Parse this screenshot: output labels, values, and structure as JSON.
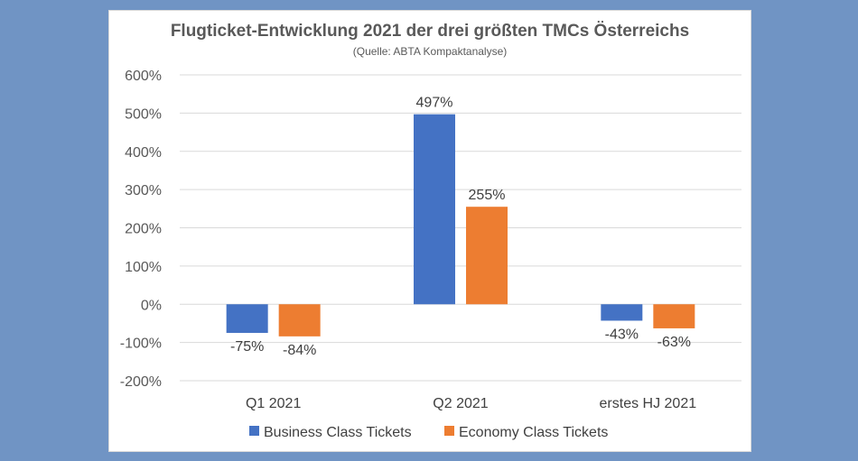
{
  "chart_data": {
    "type": "bar",
    "title": "Flugticket-Entwicklung 2021 der drei größten TMCs Österreichs",
    "subtitle": "(Quelle: ABTA Kompaktanalyse)",
    "categories": [
      "Q1 2021",
      "Q2 2021",
      "erstes HJ 2021"
    ],
    "series": [
      {
        "name": "Business Class Tickets",
        "values": [
          -75,
          497,
          -43
        ],
        "labels": [
          "-75%",
          "497%",
          "-43%"
        ],
        "color": "#4472c4"
      },
      {
        "name": "Economy Class Tickets",
        "values": [
          -84,
          255,
          -63
        ],
        "labels": [
          "-84%",
          "255%",
          "-63%"
        ],
        "color": "#ed7d31"
      }
    ],
    "ylim": [
      -200,
      600
    ],
    "yticks": [
      600,
      500,
      400,
      300,
      200,
      100,
      0,
      -100,
      -200
    ],
    "ytick_labels": [
      "600%",
      "500%",
      "400%",
      "300%",
      "200%",
      "100%",
      "0%",
      "-100%",
      "-200%"
    ],
    "grid": true,
    "legend": "bottom"
  }
}
